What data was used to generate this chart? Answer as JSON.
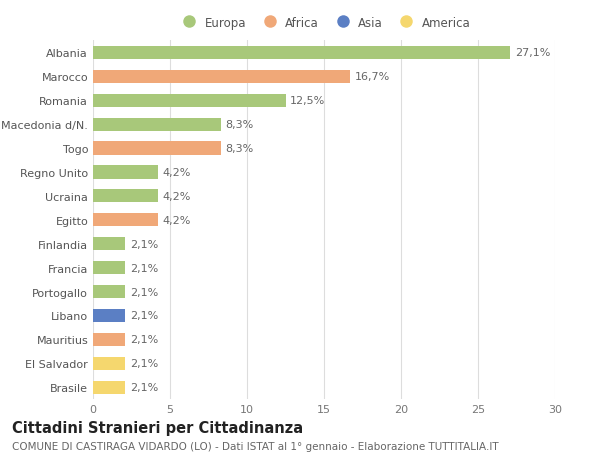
{
  "title": "Cittadini Stranieri per Cittadinanza",
  "subtitle": "COMUNE DI CASTIRAGA VIDARDO (LO) - Dati ISTAT al 1° gennaio - Elaborazione TUTTITALIA.IT",
  "categories": [
    "Brasile",
    "El Salvador",
    "Mauritius",
    "Libano",
    "Portogallo",
    "Francia",
    "Finlandia",
    "Egitto",
    "Ucraina",
    "Regno Unito",
    "Togo",
    "Macedonia d/N.",
    "Romania",
    "Marocco",
    "Albania"
  ],
  "values": [
    2.1,
    2.1,
    2.1,
    2.1,
    2.1,
    2.1,
    2.1,
    4.2,
    4.2,
    4.2,
    8.3,
    8.3,
    12.5,
    16.7,
    27.1
  ],
  "colors": [
    "#f5d76e",
    "#f5d76e",
    "#f0a878",
    "#5b7fc4",
    "#a8c87a",
    "#a8c87a",
    "#a8c87a",
    "#f0a878",
    "#a8c87a",
    "#a8c87a",
    "#f0a878",
    "#a8c87a",
    "#a8c87a",
    "#f0a878",
    "#a8c87a"
  ],
  "labels": [
    "2,1%",
    "2,1%",
    "2,1%",
    "2,1%",
    "2,1%",
    "2,1%",
    "2,1%",
    "4,2%",
    "4,2%",
    "4,2%",
    "8,3%",
    "8,3%",
    "12,5%",
    "16,7%",
    "27,1%"
  ],
  "legend_labels": [
    "Europa",
    "Africa",
    "Asia",
    "America"
  ],
  "legend_colors": [
    "#a8c87a",
    "#f0a878",
    "#5b7fc4",
    "#f5d76e"
  ],
  "xlim": [
    0,
    30
  ],
  "xticks": [
    0,
    5,
    10,
    15,
    20,
    25,
    30
  ],
  "background_color": "#ffffff",
  "grid_color": "#dddddd",
  "label_fontsize": 8.0,
  "tick_fontsize": 8.0,
  "title_fontsize": 10.5,
  "subtitle_fontsize": 7.5,
  "bar_height": 0.55
}
